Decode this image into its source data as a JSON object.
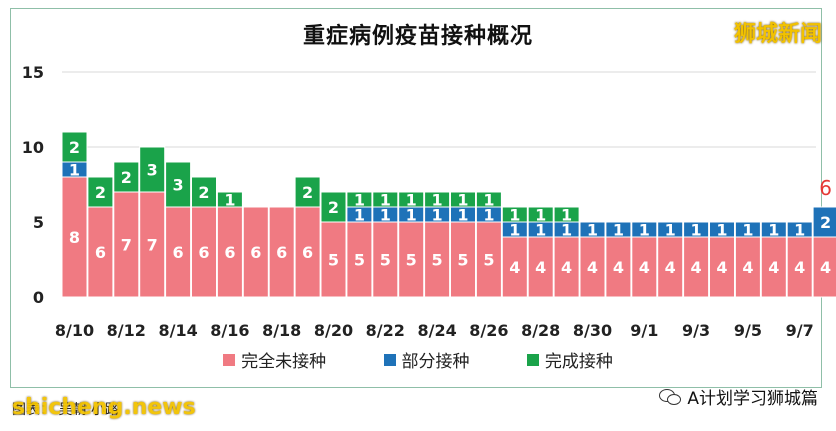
{
  "title": "重症病例疫苗接种概况",
  "brand": "狮城新闻",
  "source_label": "图表： 吴朝 小路",
  "watermark_left": "shicheng.news",
  "watermark_right": "A计划学习狮城篇",
  "colors": {
    "unvaccinated": "#f07a82",
    "partial": "#1e72b8",
    "full": "#1aa34a",
    "highlight_label": "#e53935"
  },
  "chart_data": {
    "type": "bar",
    "stacked": true,
    "title": "重症病例疫苗接种概况",
    "ylim": [
      0,
      15
    ],
    "yticks": [
      "0",
      "5",
      "10",
      "15"
    ],
    "xtick_labels": [
      "8/10",
      "8/12",
      "8/14",
      "8/16",
      "8/18",
      "8/20",
      "8/22",
      "8/24",
      "8/26",
      "8/28",
      "8/30",
      "9/1",
      "9/3",
      "9/5",
      "9/7"
    ],
    "legend_position": "bottom",
    "series": [
      {
        "name": "完全未接种",
        "key": "unvaccinated",
        "values": [
          8,
          6,
          7,
          7,
          6,
          6,
          6,
          6,
          6,
          6,
          5,
          5,
          5,
          5,
          5,
          5,
          5,
          4,
          4,
          4,
          4,
          4,
          4,
          4,
          4,
          4,
          4,
          4,
          4,
          4
        ]
      },
      {
        "name": "部分接种",
        "key": "partial",
        "values": [
          1,
          0,
          0,
          0,
          0,
          0,
          0,
          0,
          0,
          0,
          0,
          1,
          1,
          1,
          1,
          1,
          1,
          1,
          1,
          1,
          1,
          1,
          1,
          1,
          1,
          1,
          1,
          1,
          1,
          2
        ]
      },
      {
        "name": "完成接种",
        "key": "full",
        "values": [
          2,
          2,
          2,
          3,
          3,
          2,
          1,
          0,
          0,
          2,
          2,
          1,
          1,
          1,
          1,
          1,
          1,
          1,
          1,
          1,
          0,
          0,
          0,
          0,
          0,
          0,
          0,
          0,
          0,
          0
        ]
      }
    ],
    "annotation": {
      "text": "6",
      "bar_index": 29
    }
  }
}
